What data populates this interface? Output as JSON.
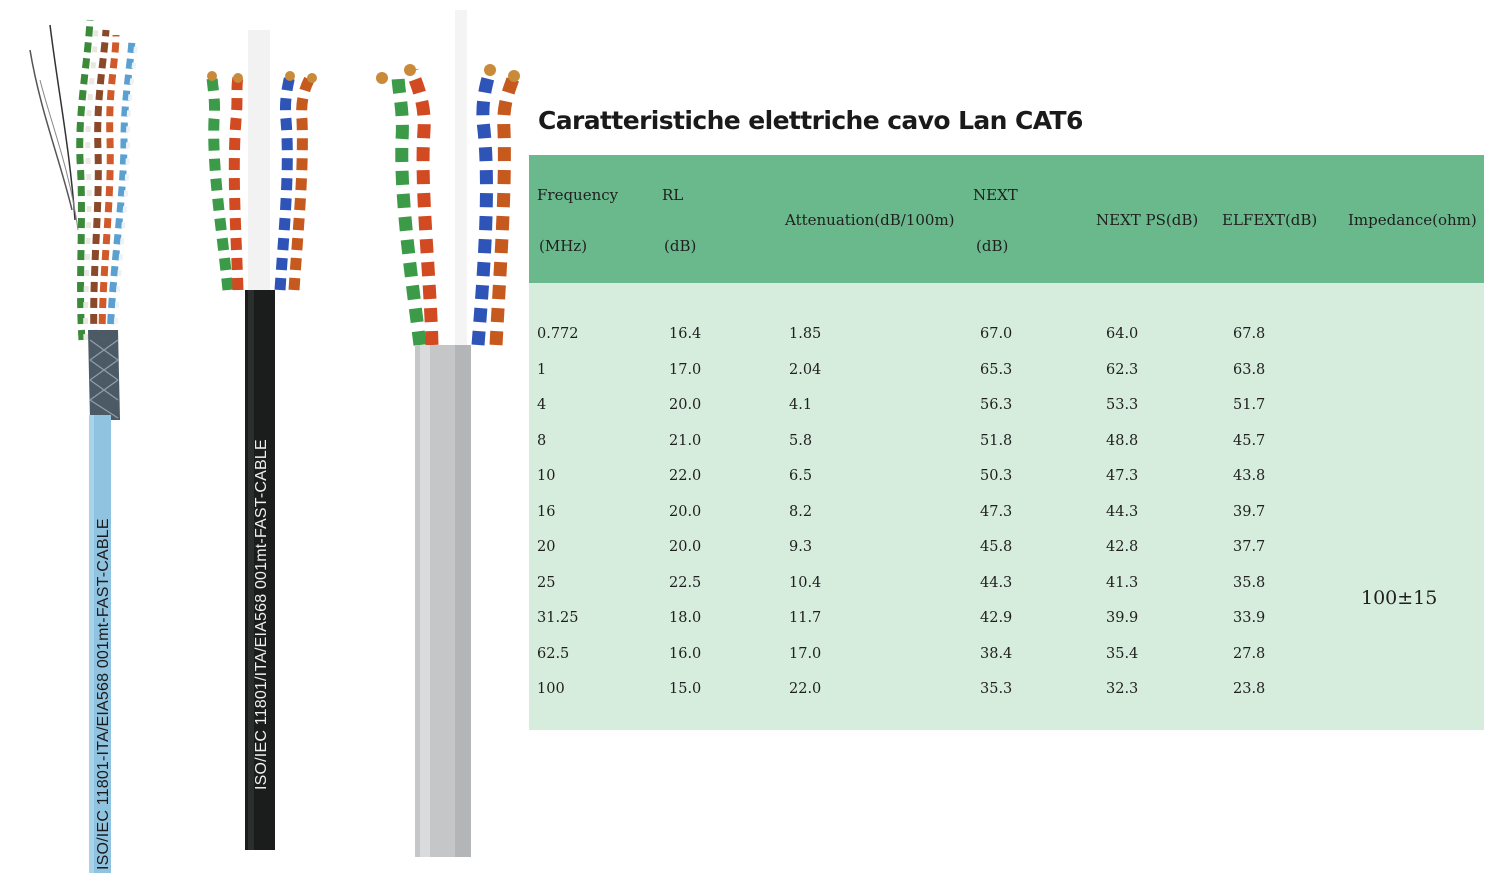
{
  "title": "Caratteristiche elettriche cavo Lan CAT6",
  "cable_prints": [
    "ISO/IEC 11801-ITA/EIA568   001mt-FAST-CABLE",
    "ISO/IEC 11801/ITA/EIA568  001mt-FAST-CABLE"
  ],
  "cable_colors": {
    "blue_jacket": "#8fc3df",
    "black_jacket": "#1a1d1b",
    "grey_jacket": "#c4c6c8"
  },
  "table": {
    "header_color": "#6ab98c",
    "body_color": "#d6ecdc",
    "headers": {
      "frequency": [
        "Frequency",
        "(MHz)"
      ],
      "rl": [
        "RL",
        "(dB)"
      ],
      "attenuation": "Attenuation(dB/100m)",
      "next": [
        "NEXT",
        "(dB)"
      ],
      "next_ps": "NEXT PS(dB)",
      "elfext": "ELFEXT(dB)",
      "impedance": "Impedance(ohm)"
    },
    "rows": [
      [
        "0.772",
        "16.4",
        "1.85",
        "67.0",
        "64.0",
        "67.8"
      ],
      [
        "1",
        "17.0",
        "2.04",
        "65.3",
        "62.3",
        "63.8"
      ],
      [
        "4",
        "20.0",
        "4.1",
        "56.3",
        "53.3",
        "51.7"
      ],
      [
        "8",
        "21.0",
        "5.8",
        "51.8",
        "48.8",
        "45.7"
      ],
      [
        "10",
        "22.0",
        "6.5",
        "50.3",
        "47.3",
        "43.8"
      ],
      [
        "16",
        "20.0",
        "8.2",
        "47.3",
        "44.3",
        "39.7"
      ],
      [
        "20",
        "20.0",
        "9.3",
        "45.8",
        "42.8",
        "37.7"
      ],
      [
        "25",
        "22.5",
        "10.4",
        "44.3",
        "41.3",
        "35.8"
      ],
      [
        "31.25",
        "18.0",
        "11.7",
        "42.9",
        "39.9",
        "33.9"
      ],
      [
        "62.5",
        "16.0",
        "17.0",
        "38.4",
        "35.4",
        "27.8"
      ],
      [
        "100",
        "15.0",
        "22.0",
        "35.3",
        "32.3",
        "23.8"
      ]
    ],
    "impedance_value": "100±15"
  }
}
